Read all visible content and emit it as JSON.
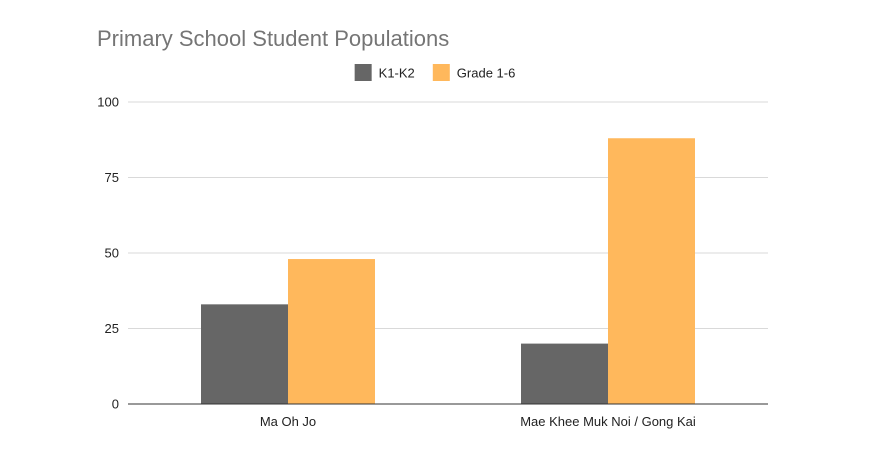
{
  "chart_data": {
    "type": "bar",
    "title": "Primary School Student Populations",
    "categories": [
      "Ma Oh Jo",
      "Mae Khee Muk Noi / Gong Kai"
    ],
    "series": [
      {
        "name": "K1-K2",
        "color": "#666666",
        "values": [
          33,
          20
        ]
      },
      {
        "name": "Grade 1-6",
        "color": "#ffb85c",
        "values": [
          48,
          88
        ]
      }
    ],
    "yticks": [
      "0",
      "25",
      "50",
      "75",
      "100"
    ],
    "ylim": [
      0,
      100
    ],
    "grid": true,
    "legend": "top-center"
  }
}
